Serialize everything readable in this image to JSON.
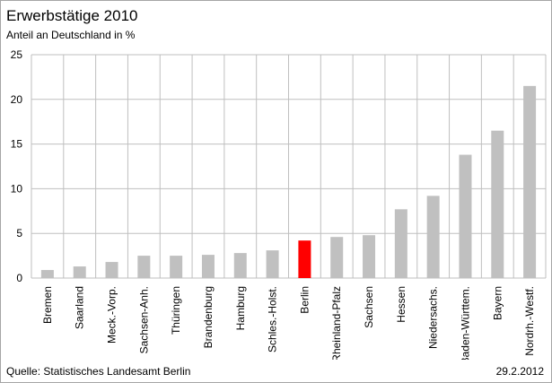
{
  "chart_data": {
    "type": "bar",
    "title": "Erwerbstätige 2010",
    "subtitle": "Anteil an Deutschland in %",
    "xlabel": "",
    "ylabel": "",
    "ylim": [
      0,
      25
    ],
    "yticks": [
      0,
      5,
      10,
      15,
      20,
      25
    ],
    "grid": true,
    "legend": "none",
    "categories": [
      "Bremen",
      "Saarland",
      "Meck.-Vorp.",
      "Sachsen-Anh.",
      "Thüringen",
      "Brandenburg",
      "Hamburg",
      "Schles.-Holst.",
      "Berlin",
      "Rheinland-Pfalz",
      "Sachsen",
      "Hessen",
      "Niedersachs.",
      "Baden-Württem.",
      "Bayern",
      "Nordrh.-Westf."
    ],
    "values": [
      0.9,
      1.3,
      1.8,
      2.5,
      2.5,
      2.6,
      2.8,
      3.1,
      4.2,
      4.6,
      4.8,
      7.7,
      9.2,
      13.8,
      16.5,
      21.5
    ],
    "bar_color": "#c0c0c0",
    "highlight_category": "Berlin",
    "highlight_color": "#ff0000",
    "gridline_color": "#bfbfbf"
  },
  "source": "Quelle: Statistisches Landesamt Berlin",
  "date": "29.2.2012"
}
